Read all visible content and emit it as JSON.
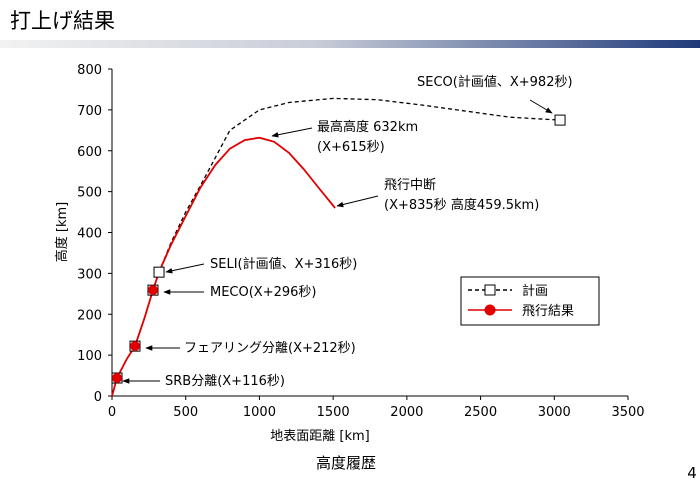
{
  "slide_title": "打上げ結果",
  "page_number": "4",
  "caption": "高度履歴",
  "chart_data": {
    "type": "line",
    "x_label": "地表面距離 [km]",
    "y_label": "高度 [km]",
    "xlim": [
      0,
      3500
    ],
    "xticks": [
      0,
      500,
      1000,
      1500,
      2000,
      2500,
      3000,
      3500
    ],
    "ylim": [
      0,
      800
    ],
    "yticks": [
      0,
      100,
      200,
      300,
      400,
      500,
      600,
      700,
      800
    ],
    "grid": false,
    "legend": "right",
    "series": [
      {
        "name": "計画",
        "color": "#000000",
        "dashed": true,
        "marker": "open-square",
        "x": [
          0,
          34,
          100,
          156,
          220,
          278,
          319,
          400,
          500,
          600,
          800,
          1000,
          1200,
          1500,
          1800,
          2100,
          2400,
          2700,
          3039
        ],
        "values": [
          0,
          44,
          90,
          122,
          190,
          259,
          303,
          375,
          450,
          515,
          650,
          700,
          718,
          728,
          725,
          712,
          697,
          682,
          675
        ],
        "points": {
          "x": [
            34,
            156,
            278,
            319,
            3039
          ],
          "values": [
            44,
            122,
            259,
            303,
            675
          ]
        }
      },
      {
        "name": "飛行結果",
        "color": "#e00000",
        "dashed": false,
        "marker": "filled-circle",
        "x": [
          0,
          34,
          100,
          156,
          220,
          278,
          319,
          400,
          500,
          600,
          700,
          800,
          900,
          1000,
          1100,
          1200,
          1300,
          1400,
          1513
        ],
        "values": [
          0,
          44,
          90,
          122,
          190,
          259,
          303,
          370,
          440,
          510,
          565,
          605,
          626,
          632,
          622,
          595,
          555,
          510,
          460
        ],
        "points": {
          "x": [
            34,
            156,
            278
          ],
          "values": [
            44,
            122,
            259
          ]
        }
      }
    ],
    "annotations": [
      [
        "SECO(計画値、X+982秒)"
      ],
      [
        "最高高度 632km",
        "(X+615秒)"
      ],
      [
        "飛行中断",
        "(X+835秒 高度459.5km)"
      ],
      [
        "SELI(計画値、X+316秒)"
      ],
      [
        "MECO(X+296秒)"
      ],
      [
        "フェアリング分離(X+212秒)"
      ],
      [
        "SRB分離(X+116秒)"
      ]
    ]
  }
}
